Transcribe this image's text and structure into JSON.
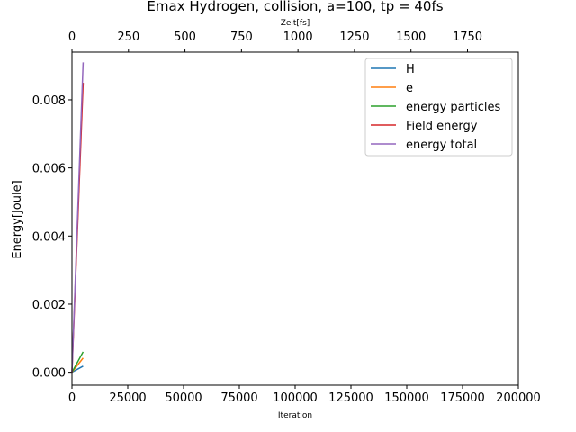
{
  "chart_data": {
    "type": "line",
    "title": "Emax Hydrogen, collision, a=100, tp = 40fs",
    "xlabel": "Iteration",
    "ylabel": "Energy[Joule]",
    "x2label": "Zeit[fs]",
    "xlim": [
      0,
      200000
    ],
    "ylim": [
      -0.00038,
      0.0094
    ],
    "x2lim": [
      0,
      1975
    ],
    "xticks": [
      0,
      25000,
      50000,
      75000,
      100000,
      125000,
      150000,
      175000,
      200000
    ],
    "x2ticks": [
      0,
      250,
      500,
      750,
      1000,
      1250,
      1500,
      1750
    ],
    "yticks": [
      0.0,
      0.002,
      0.004,
      0.006,
      0.008
    ],
    "ytick_labels": [
      "0.000",
      "0.002",
      "0.004",
      "0.006",
      "0.008"
    ],
    "legend_position": "top-right",
    "series": [
      {
        "name": "H",
        "color": "#1f77b4",
        "x": [
          0,
          5000
        ],
        "values": [
          0.0,
          0.00018
        ]
      },
      {
        "name": "e",
        "color": "#ff7f0e",
        "x": [
          0,
          5000
        ],
        "values": [
          0.0,
          0.00042
        ]
      },
      {
        "name": "energy particles",
        "color": "#2ca02c",
        "x": [
          0,
          5000
        ],
        "values": [
          0.0,
          0.0006
        ]
      },
      {
        "name": "Field energy",
        "color": "#d62728",
        "x": [
          0,
          5000
        ],
        "values": [
          0.0,
          0.0085
        ]
      },
      {
        "name": "energy total",
        "color": "#9467bd",
        "x": [
          0,
          5000
        ],
        "values": [
          0.0,
          0.0091
        ]
      }
    ]
  }
}
